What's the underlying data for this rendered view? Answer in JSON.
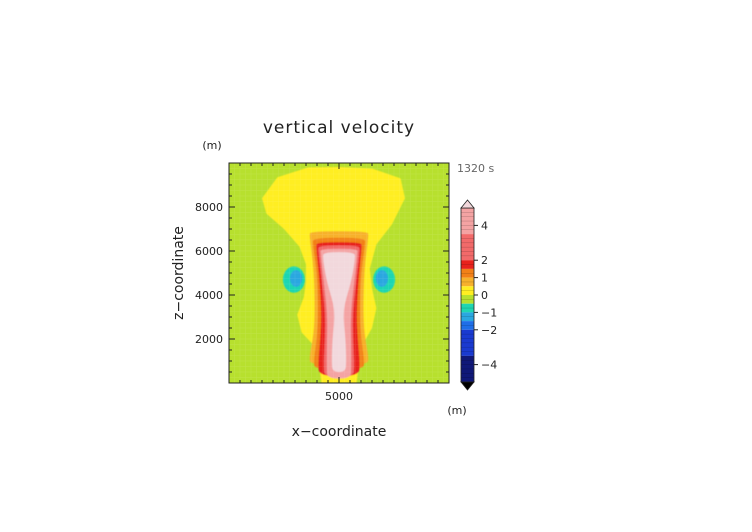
{
  "chart_data": {
    "type": "heatmap",
    "title": "vertical velocity",
    "xlabel": "x−coordinate",
    "ylabel": "z−coordinate",
    "x_unit": "(m)",
    "y_unit": "(m)",
    "time_label": "1320 s",
    "xlim": [
      0,
      10000
    ],
    "ylim": [
      0,
      10000
    ],
    "x_ticks": [
      5000
    ],
    "x_tick_labels": [
      "5000"
    ],
    "y_ticks": [
      2000,
      4000,
      6000,
      8000
    ],
    "y_tick_labels": [
      "2000",
      "4000",
      "6000",
      "8000"
    ],
    "colorbar": {
      "min": -5,
      "max": 5,
      "ticks": [
        4,
        2,
        1,
        0,
        -1,
        -2,
        -4
      ],
      "tick_labels": [
        "4",
        "2",
        "1",
        "0",
        "−1",
        "−2",
        "−4"
      ],
      "bands": [
        {
          "from": 3.5,
          "to": 5,
          "color": "#f4a3a3"
        },
        {
          "from": 2.0,
          "to": 3.5,
          "color": "#f26a6a"
        },
        {
          "from": 1.5,
          "to": 2.0,
          "color": "#e8221c"
        },
        {
          "from": 1.0,
          "to": 1.5,
          "color": "#f28018"
        },
        {
          "from": 0.5,
          "to": 1.0,
          "color": "#f7b12c"
        },
        {
          "from": 0.0,
          "to": 0.5,
          "color": "#ffee22"
        },
        {
          "from": -0.5,
          "to": 0.0,
          "color": "#b7e02e"
        },
        {
          "from": -1.0,
          "to": -0.5,
          "color": "#1fd6b2"
        },
        {
          "from": -1.5,
          "to": -1.0,
          "color": "#2aa7e0"
        },
        {
          "from": -2.0,
          "to": -1.5,
          "color": "#1f6ee8"
        },
        {
          "from": -3.5,
          "to": -2.0,
          "color": "#1a3ad0"
        },
        {
          "from": -5.0,
          "to": -3.5,
          "color": "#101878"
        }
      ],
      "over_color": "#f2d8dc",
      "under_color": "#000000"
    },
    "background_color": "#b7e02e"
  }
}
